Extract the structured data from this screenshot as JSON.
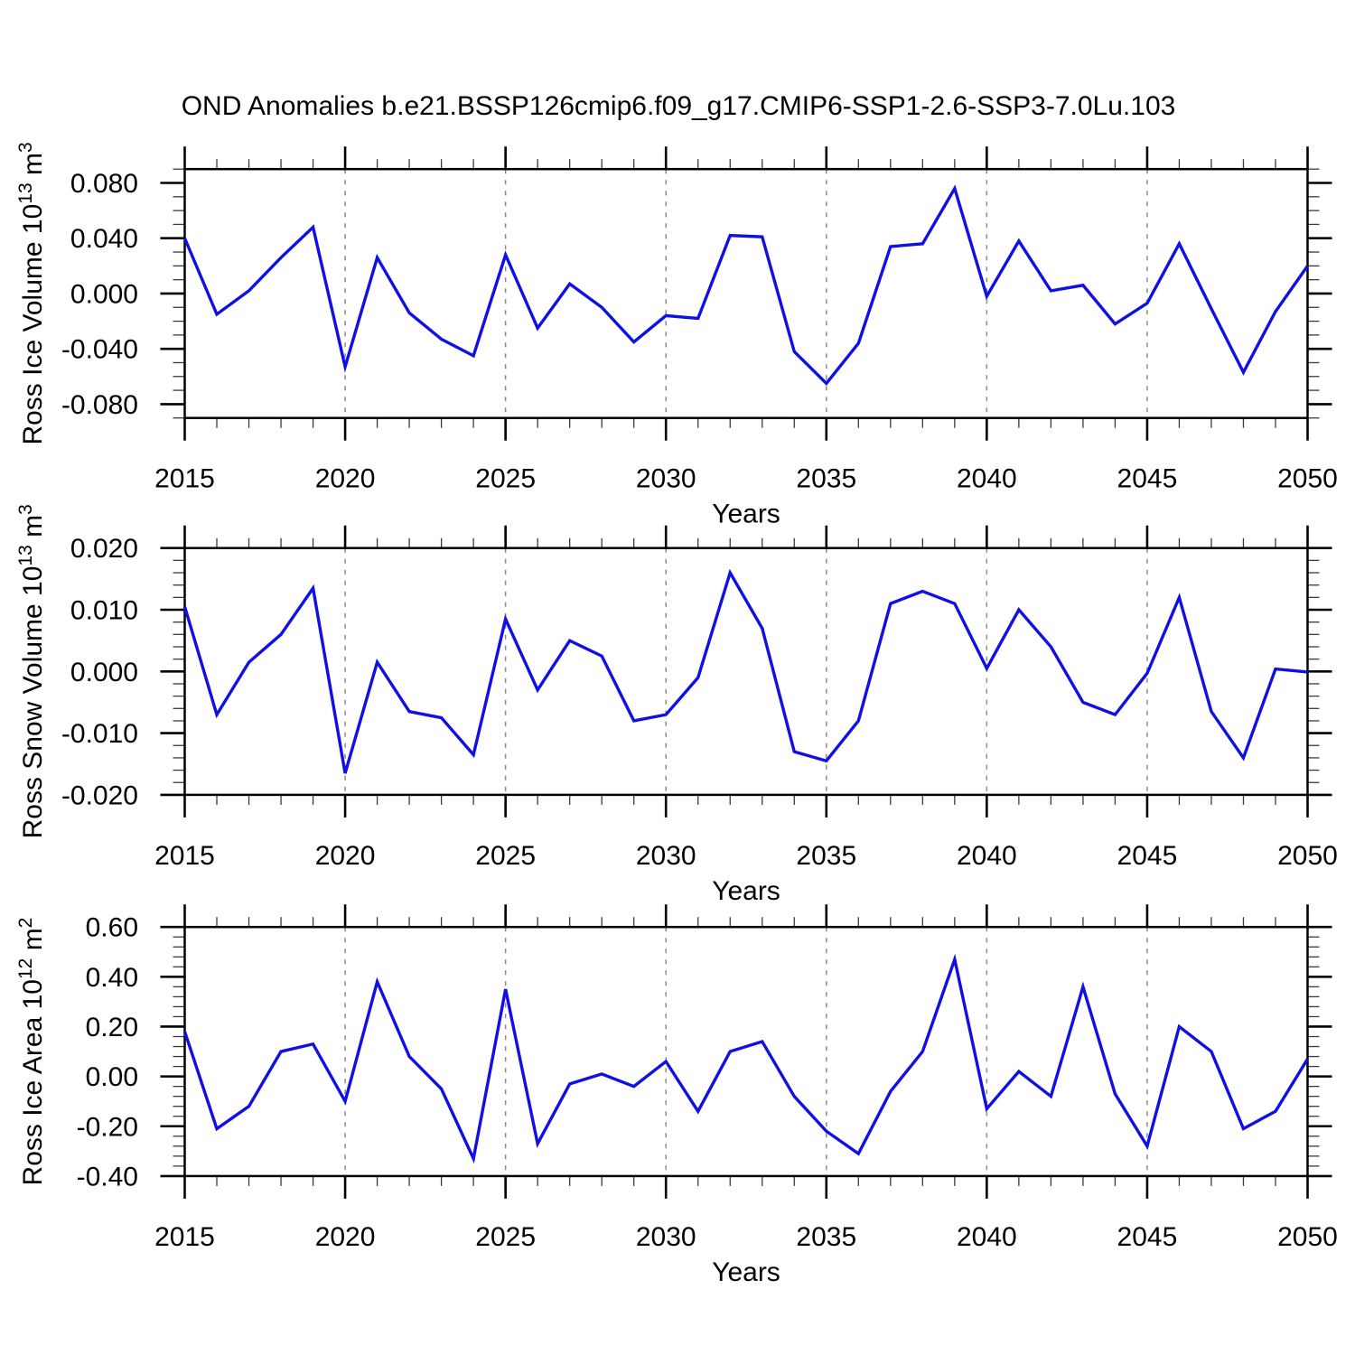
{
  "title": "OND Anomalies b.e21.BSSP126cmip6.f09_g17.CMIP6-SSP1-2.6-SSP3-7.0Lu.103",
  "line_color": "#0f0fe6",
  "grid_color": "#8a8a8a",
  "chart_data": [
    {
      "type": "line",
      "name": "ross-ice-volume",
      "ylabel": "Ross Ice Volume 10^13 m^3",
      "ylabel_parts": [
        {
          "t": "Ross Ice Volume 10",
          "sup": false
        },
        {
          "t": "13",
          "sup": true
        },
        {
          "t": " m",
          "sup": false
        },
        {
          "t": "3",
          "sup": true
        }
      ],
      "xlabel": "Years",
      "x": [
        2015,
        2016,
        2017,
        2018,
        2019,
        2020,
        2021,
        2022,
        2023,
        2024,
        2025,
        2026,
        2027,
        2028,
        2029,
        2030,
        2031,
        2032,
        2033,
        2034,
        2035,
        2036,
        2037,
        2038,
        2039,
        2040,
        2041,
        2042,
        2043,
        2044,
        2045,
        2046,
        2047,
        2048,
        2049,
        2050
      ],
      "values": [
        0.04,
        -0.015,
        0.002,
        0.026,
        0.048,
        -0.053,
        0.026,
        -0.014,
        -0.033,
        -0.045,
        0.028,
        -0.025,
        0.007,
        -0.01,
        -0.035,
        -0.016,
        -0.018,
        0.042,
        0.041,
        -0.042,
        -0.065,
        -0.036,
        0.034,
        0.036,
        0.076,
        -0.002,
        0.038,
        0.002,
        0.006,
        -0.022,
        -0.007,
        0.036,
        -0.011,
        -0.057,
        -0.013,
        0.02
      ],
      "xlim": [
        2015,
        2050
      ],
      "ylim": [
        -0.09,
        0.09
      ],
      "ytick_values": [
        0.08,
        0.04,
        0.0,
        -0.04,
        -0.08
      ],
      "ytick_labels": [
        "0.080",
        "0.040",
        "0.000",
        "-0.040",
        "-0.080"
      ],
      "y_minor_step": 0.01,
      "xticks_major": [
        2015,
        2020,
        2025,
        2030,
        2035,
        2040,
        2045,
        2050
      ],
      "grid_years": [
        2020,
        2025,
        2030,
        2035,
        2040,
        2045
      ],
      "grid": true,
      "legend": "none"
    },
    {
      "type": "line",
      "name": "ross-snow-volume",
      "ylabel": "Ross Snow Volume 10^13 m^3",
      "ylabel_parts": [
        {
          "t": "Ross Snow Volume 10",
          "sup": false
        },
        {
          "t": "13",
          "sup": true
        },
        {
          "t": " m",
          "sup": false
        },
        {
          "t": "3",
          "sup": true
        }
      ],
      "xlabel": "Years",
      "x": [
        2015,
        2016,
        2017,
        2018,
        2019,
        2020,
        2021,
        2022,
        2023,
        2024,
        2025,
        2026,
        2027,
        2028,
        2029,
        2030,
        2031,
        2032,
        2033,
        2034,
        2035,
        2036,
        2037,
        2038,
        2039,
        2040,
        2041,
        2042,
        2043,
        2044,
        2045,
        2046,
        2047,
        2048,
        2049,
        2050
      ],
      "values": [
        0.0105,
        -0.007,
        0.0015,
        0.006,
        0.0135,
        -0.0165,
        0.0015,
        -0.0065,
        -0.0075,
        -0.0135,
        0.0085,
        -0.003,
        0.005,
        0.0025,
        -0.008,
        -0.007,
        -0.001,
        0.016,
        0.007,
        -0.013,
        -0.0145,
        -0.008,
        0.011,
        0.013,
        0.011,
        0.0005,
        0.01,
        0.004,
        -0.005,
        -0.007,
        -0.0003,
        0.012,
        -0.0065,
        -0.014,
        0.0004,
        -0.0001
      ],
      "xlim": [
        2015,
        2050
      ],
      "ylim": [
        -0.02,
        0.02
      ],
      "ytick_values": [
        0.02,
        0.01,
        0.0,
        -0.01,
        -0.02
      ],
      "ytick_labels": [
        "0.020",
        "0.010",
        "0.000",
        "-0.010",
        "-0.020"
      ],
      "y_minor_step": 0.002,
      "xticks_major": [
        2015,
        2020,
        2025,
        2030,
        2035,
        2040,
        2045,
        2050
      ],
      "grid_years": [
        2020,
        2025,
        2030,
        2035,
        2040,
        2045
      ],
      "grid": true,
      "legend": "none"
    },
    {
      "type": "line",
      "name": "ross-ice-area",
      "ylabel": "Ross Ice Area 10^12 m^2",
      "ylabel_parts": [
        {
          "t": "Ross Ice Area 10",
          "sup": false
        },
        {
          "t": "12",
          "sup": true
        },
        {
          "t": " m",
          "sup": false
        },
        {
          "t": "2",
          "sup": true
        }
      ],
      "xlabel": "Years",
      "x": [
        2015,
        2016,
        2017,
        2018,
        2019,
        2020,
        2021,
        2022,
        2023,
        2024,
        2025,
        2026,
        2027,
        2028,
        2029,
        2030,
        2031,
        2032,
        2033,
        2034,
        2035,
        2036,
        2037,
        2038,
        2039,
        2040,
        2041,
        2042,
        2043,
        2044,
        2045,
        2046,
        2047,
        2048,
        2049,
        2050
      ],
      "values": [
        0.18,
        -0.21,
        -0.12,
        0.1,
        0.13,
        -0.1,
        0.38,
        0.08,
        -0.05,
        -0.33,
        0.35,
        -0.27,
        -0.03,
        0.01,
        -0.04,
        0.06,
        -0.14,
        0.1,
        0.14,
        -0.08,
        -0.22,
        -0.31,
        -0.06,
        0.1,
        0.47,
        -0.13,
        0.02,
        -0.08,
        0.36,
        -0.07,
        -0.28,
        0.2,
        0.1,
        -0.21,
        -0.14,
        0.07
      ],
      "xlim": [
        2015,
        2050
      ],
      "ylim": [
        -0.4,
        0.6
      ],
      "ytick_values": [
        0.6,
        0.4,
        0.2,
        0.0,
        -0.2,
        -0.4
      ],
      "ytick_labels": [
        "0.60",
        "0.40",
        "0.20",
        "0.00",
        "-0.20",
        "-0.40"
      ],
      "y_minor_step": 0.04,
      "xticks_major": [
        2015,
        2020,
        2025,
        2030,
        2035,
        2040,
        2045,
        2050
      ],
      "grid_years": [
        2020,
        2025,
        2030,
        2035,
        2040,
        2045
      ],
      "grid": true,
      "legend": "none"
    }
  ]
}
